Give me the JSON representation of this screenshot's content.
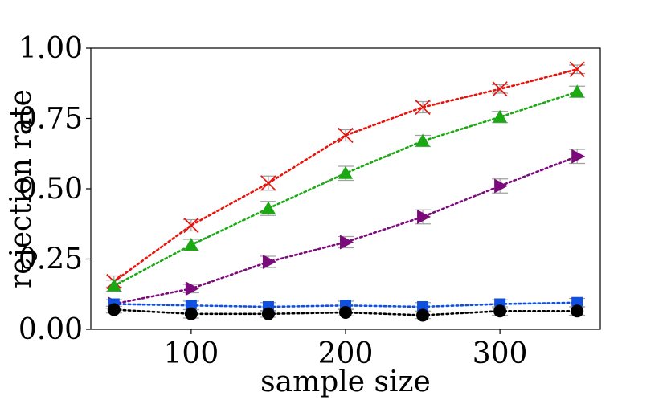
{
  "chart_data": {
    "type": "line",
    "title": "",
    "xlabel": "sample size",
    "ylabel": "rejection rate",
    "xlim": [
      35,
      365
    ],
    "ylim": [
      0,
      1
    ],
    "x": [
      50,
      100,
      150,
      200,
      250,
      300,
      350
    ],
    "xticks": [
      100,
      200,
      300
    ],
    "xtick_labels": [
      "100",
      "200",
      "300"
    ],
    "yticks": [
      0,
      0.25,
      0.5,
      0.75,
      1.0
    ],
    "ytick_labels": [
      "0.00",
      "0.25",
      "0.50",
      "0.75",
      "1.00"
    ],
    "grid": false,
    "legend": "none",
    "series": [
      {
        "name": "red-x",
        "color": "#e8120c",
        "marker": "x",
        "values": [
          0.17,
          0.37,
          0.52,
          0.69,
          0.79,
          0.855,
          0.925
        ],
        "error": [
          0.02,
          0.02,
          0.025,
          0.02,
          0.02,
          0.015,
          0.015
        ]
      },
      {
        "name": "green-triangle",
        "color": "#1aa813",
        "marker": "triangle-up",
        "values": [
          0.155,
          0.3,
          0.43,
          0.555,
          0.67,
          0.755,
          0.845
        ],
        "error": [
          0.02,
          0.02,
          0.025,
          0.025,
          0.02,
          0.02,
          0.02
        ]
      },
      {
        "name": "purple-triangle",
        "color": "#7b0a7b",
        "marker": "triangle-right",
        "values": [
          0.09,
          0.145,
          0.24,
          0.31,
          0.4,
          0.51,
          0.615
        ],
        "error": [
          0.015,
          0.015,
          0.02,
          0.02,
          0.025,
          0.025,
          0.025
        ]
      },
      {
        "name": "blue-square",
        "color": "#1050e0",
        "marker": "square",
        "values": [
          0.09,
          0.085,
          0.08,
          0.085,
          0.08,
          0.09,
          0.095
        ],
        "error": [
          0.015,
          0.015,
          0.015,
          0.015,
          0.015,
          0.015,
          0.015
        ]
      },
      {
        "name": "black-circle",
        "color": "#000000",
        "marker": "circle",
        "values": [
          0.07,
          0.055,
          0.055,
          0.06,
          0.05,
          0.065,
          0.065
        ],
        "error": [
          0.012,
          0.015,
          0.012,
          0.012,
          0.012,
          0.015,
          0.015
        ]
      }
    ]
  }
}
